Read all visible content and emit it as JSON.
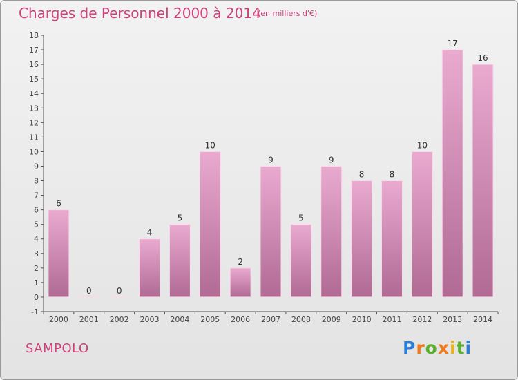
{
  "header": {
    "title": "Charges de Personnel 2000 à 2014",
    "subtitle": "(en milliers d'€)"
  },
  "footer": {
    "town": "SAMPOLO",
    "logo": "Proxiti"
  },
  "chart_data": {
    "type": "bar",
    "title": "Charges de Personnel 2000 à 2014",
    "subtitle": "(en milliers d'€)",
    "categories": [
      "2000",
      "2001",
      "2002",
      "2003",
      "2004",
      "2005",
      "2006",
      "2007",
      "2008",
      "2009",
      "2010",
      "2011",
      "2012",
      "2013",
      "2014"
    ],
    "values": [
      6,
      0,
      0,
      4,
      5,
      10,
      2,
      9,
      5,
      9,
      8,
      8,
      10,
      17,
      16
    ],
    "ylim": [
      -1,
      18
    ],
    "yticks": [
      -1,
      0,
      1,
      2,
      3,
      4,
      5,
      6,
      7,
      8,
      9,
      10,
      11,
      12,
      13,
      14,
      15,
      16,
      17,
      18
    ],
    "grid": false,
    "bar_color": "#d77fae"
  }
}
